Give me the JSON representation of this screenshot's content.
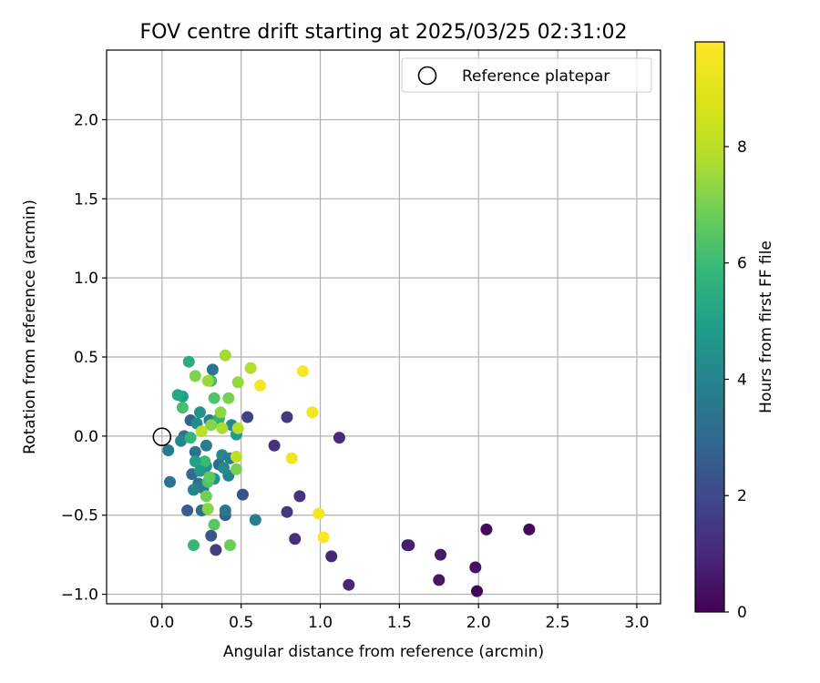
{
  "chart_data": {
    "type": "scatter",
    "title": "FOV centre drift starting at 2025/03/25 02:31:02",
    "xlabel": "Angular distance from reference (arcmin)",
    "ylabel": "Rotation from reference (arcmin)",
    "xlim": [
      -0.35,
      3.15
    ],
    "ylim": [
      -1.06,
      2.44
    ],
    "xticks": [
      0.0,
      0.5,
      1.0,
      1.5,
      2.0,
      2.5,
      3.0
    ],
    "xtick_labels": [
      "0.0",
      "0.5",
      "1.0",
      "1.5",
      "2.0",
      "2.5",
      "3.0"
    ],
    "yticks": [
      -1.0,
      -0.5,
      0.0,
      0.5,
      1.0,
      1.5,
      2.0
    ],
    "ytick_labels": [
      "−1.0",
      "−0.5",
      "0.0",
      "0.5",
      "1.0",
      "1.5",
      "2.0"
    ],
    "grid": true,
    "legend": {
      "position": "top-right",
      "entries": [
        {
          "label": "Reference platepar",
          "marker": "open-circle",
          "x": 0.0,
          "y": 0.0
        }
      ]
    },
    "colorbar": {
      "label": "Hours from first FF file",
      "colormap": "viridis",
      "range": [
        0,
        9.8
      ],
      "ticks": [
        0,
        2,
        4,
        6,
        8
      ],
      "tick_labels": [
        "0",
        "2",
        "4",
        "6",
        "8"
      ]
    },
    "series": [
      {
        "color_by": "hours",
        "points": [
          {
            "x": 2.32,
            "y": -0.59,
            "c": 0.2
          },
          {
            "x": 2.05,
            "y": -0.59,
            "c": 0.3
          },
          {
            "x": 1.98,
            "y": -0.83,
            "c": 0.4
          },
          {
            "x": 1.99,
            "y": -0.98,
            "c": 0.1
          },
          {
            "x": 1.76,
            "y": -0.75,
            "c": 0.6
          },
          {
            "x": 1.75,
            "y": -0.91,
            "c": 0.5
          },
          {
            "x": 1.55,
            "y": -0.69,
            "c": 0.7
          },
          {
            "x": 1.56,
            "y": -0.69,
            "c": 0.8
          },
          {
            "x": 1.18,
            "y": -0.94,
            "c": 0.9
          },
          {
            "x": 1.07,
            "y": -0.76,
            "c": 1.0
          },
          {
            "x": 1.12,
            "y": -0.01,
            "c": 1.1
          },
          {
            "x": 0.84,
            "y": -0.65,
            "c": 1.2
          },
          {
            "x": 0.87,
            "y": -0.38,
            "c": 1.3
          },
          {
            "x": 0.79,
            "y": -0.48,
            "c": 1.4
          },
          {
            "x": 0.79,
            "y": 0.12,
            "c": 1.5
          },
          {
            "x": 0.71,
            "y": -0.06,
            "c": 1.3
          },
          {
            "x": 0.54,
            "y": 0.12,
            "c": 1.8
          },
          {
            "x": 0.51,
            "y": -0.37,
            "c": 2.2
          },
          {
            "x": 0.34,
            "y": -0.72,
            "c": 1.7
          },
          {
            "x": 0.31,
            "y": -0.63,
            "c": 2.4
          },
          {
            "x": 0.16,
            "y": -0.47,
            "c": 2.6
          },
          {
            "x": 0.05,
            "y": -0.29,
            "c": 3.4
          },
          {
            "x": 0.04,
            "y": -0.09,
            "c": 3.6
          },
          {
            "x": 0.32,
            "y": 0.42,
            "c": 3.4
          },
          {
            "x": 0.59,
            "y": -0.53,
            "c": 3.8
          },
          {
            "x": 0.4,
            "y": -0.5,
            "c": 2.8
          },
          {
            "x": 0.4,
            "y": -0.47,
            "c": 3.5
          },
          {
            "x": 0.25,
            "y": -0.47,
            "c": 3.2
          },
          {
            "x": 0.19,
            "y": -0.24,
            "c": 3.0
          },
          {
            "x": 0.21,
            "y": -0.1,
            "c": 3.3
          },
          {
            "x": 0.28,
            "y": -0.06,
            "c": 3.7
          },
          {
            "x": 0.36,
            "y": -0.18,
            "c": 3.1
          },
          {
            "x": 0.42,
            "y": -0.25,
            "c": 3.9
          },
          {
            "x": 0.38,
            "y": -0.12,
            "c": 4.1
          },
          {
            "x": 0.44,
            "y": 0.07,
            "c": 4.2
          },
          {
            "x": 0.3,
            "y": 0.1,
            "c": 3.9
          },
          {
            "x": 0.18,
            "y": 0.1,
            "c": 2.8
          },
          {
            "x": 0.22,
            "y": 0.08,
            "c": 4.3
          },
          {
            "x": 0.14,
            "y": 0.0,
            "c": 3.2
          },
          {
            "x": 0.12,
            "y": -0.03,
            "c": 4.0
          },
          {
            "x": 0.23,
            "y": -0.3,
            "c": 3.4
          },
          {
            "x": 0.26,
            "y": -0.33,
            "c": 3.6
          },
          {
            "x": 0.2,
            "y": -0.34,
            "c": 4.0
          },
          {
            "x": 0.28,
            "y": -0.19,
            "c": 4.4
          },
          {
            "x": 0.33,
            "y": -0.27,
            "c": 4.6
          },
          {
            "x": 0.39,
            "y": -0.2,
            "c": 4.2
          },
          {
            "x": 0.43,
            "y": -0.14,
            "c": 3.8
          },
          {
            "x": 0.47,
            "y": 0.01,
            "c": 4.8
          },
          {
            "x": 0.24,
            "y": 0.15,
            "c": 4.5
          },
          {
            "x": 0.13,
            "y": 0.25,
            "c": 4.9
          },
          {
            "x": 0.17,
            "y": 0.47,
            "c": 5.5
          },
          {
            "x": 0.1,
            "y": 0.26,
            "c": 5.2
          },
          {
            "x": 0.13,
            "y": 0.18,
            "c": 6.2
          },
          {
            "x": 0.18,
            "y": -0.01,
            "c": 5.8
          },
          {
            "x": 0.27,
            "y": -0.16,
            "c": 6.0
          },
          {
            "x": 0.21,
            "y": -0.16,
            "c": 5.0
          },
          {
            "x": 0.24,
            "y": -0.22,
            "c": 4.7
          },
          {
            "x": 0.29,
            "y": -0.29,
            "c": 6.3
          },
          {
            "x": 0.28,
            "y": -0.38,
            "c": 6.9
          },
          {
            "x": 0.29,
            "y": -0.46,
            "c": 7.2
          },
          {
            "x": 0.33,
            "y": -0.56,
            "c": 6.5
          },
          {
            "x": 0.2,
            "y": -0.69,
            "c": 5.9
          },
          {
            "x": 0.43,
            "y": -0.69,
            "c": 6.8
          },
          {
            "x": 0.3,
            "y": -0.26,
            "c": 6.6
          },
          {
            "x": 0.36,
            "y": 0.11,
            "c": 5.7
          },
          {
            "x": 0.33,
            "y": 0.24,
            "c": 6.4
          },
          {
            "x": 0.42,
            "y": 0.24,
            "c": 7.0
          },
          {
            "x": 0.37,
            "y": 0.15,
            "c": 7.3
          },
          {
            "x": 0.31,
            "y": 0.35,
            "c": 6.1
          },
          {
            "x": 0.29,
            "y": 0.35,
            "c": 7.5
          },
          {
            "x": 0.21,
            "y": 0.38,
            "c": 7.1
          },
          {
            "x": 0.4,
            "y": 0.51,
            "c": 7.6
          },
          {
            "x": 0.48,
            "y": 0.34,
            "c": 7.4
          },
          {
            "x": 0.56,
            "y": 0.43,
            "c": 7.8
          },
          {
            "x": 0.25,
            "y": 0.03,
            "c": 8.0
          },
          {
            "x": 0.31,
            "y": 0.07,
            "c": 7.2
          },
          {
            "x": 0.38,
            "y": 0.05,
            "c": 7.7
          },
          {
            "x": 0.48,
            "y": 0.05,
            "c": 7.9
          },
          {
            "x": 0.47,
            "y": -0.13,
            "c": 8.1
          },
          {
            "x": 0.47,
            "y": -0.21,
            "c": 7.0
          },
          {
            "x": 0.62,
            "y": 0.32,
            "c": 9.6
          },
          {
            "x": 0.89,
            "y": 0.41,
            "c": 9.7
          },
          {
            "x": 0.95,
            "y": 0.15,
            "c": 9.5
          },
          {
            "x": 0.82,
            "y": -0.14,
            "c": 9.4
          },
          {
            "x": 0.99,
            "y": -0.49,
            "c": 9.6
          },
          {
            "x": 1.02,
            "y": -0.64,
            "c": 9.8
          }
        ]
      }
    ]
  }
}
